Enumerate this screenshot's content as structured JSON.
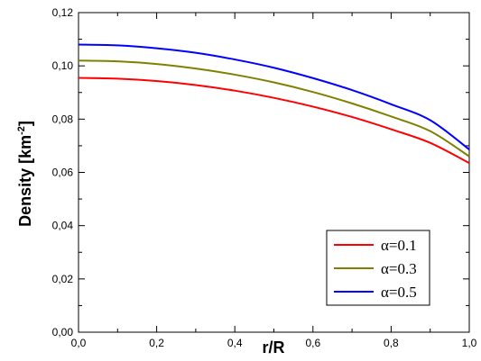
{
  "chart_data": {
    "type": "line",
    "xlabel": "r/R",
    "ylabel_main": "Density [km",
    "ylabel_sup": "-2",
    "ylabel_close": "]",
    "xlim": [
      0,
      1
    ],
    "ylim": [
      0,
      0.12
    ],
    "x_ticks": [
      "0,0",
      "0,2",
      "0,4",
      "0,6",
      "0,8",
      "1,0"
    ],
    "y_ticks": [
      "0,00",
      "0,02",
      "0,04",
      "0,06",
      "0,08",
      "0,10",
      "0,12"
    ],
    "grid": false,
    "legend_position": "bottom-right",
    "x": [
      0,
      0.1,
      0.2,
      0.3,
      0.4,
      0.5,
      0.6,
      0.7,
      0.8,
      0.9,
      1.0
    ],
    "series": [
      {
        "name": "α=0.1",
        "color": "#ff0000",
        "values": [
          0.0955,
          0.0952,
          0.0943,
          0.0928,
          0.0907,
          0.088,
          0.0847,
          0.0808,
          0.0762,
          0.0711,
          0.0635
        ]
      },
      {
        "name": "α=0.3",
        "color": "#808000",
        "values": [
          0.102,
          0.1017,
          0.1007,
          0.099,
          0.0967,
          0.0938,
          0.0902,
          0.0859,
          0.081,
          0.0755,
          0.066
        ]
      },
      {
        "name": "α=0.5",
        "color": "#0000ff",
        "values": [
          0.108,
          0.1077,
          0.1066,
          0.1049,
          0.1024,
          0.0993,
          0.0954,
          0.0909,
          0.0856,
          0.0796,
          0.0686
        ]
      }
    ]
  }
}
